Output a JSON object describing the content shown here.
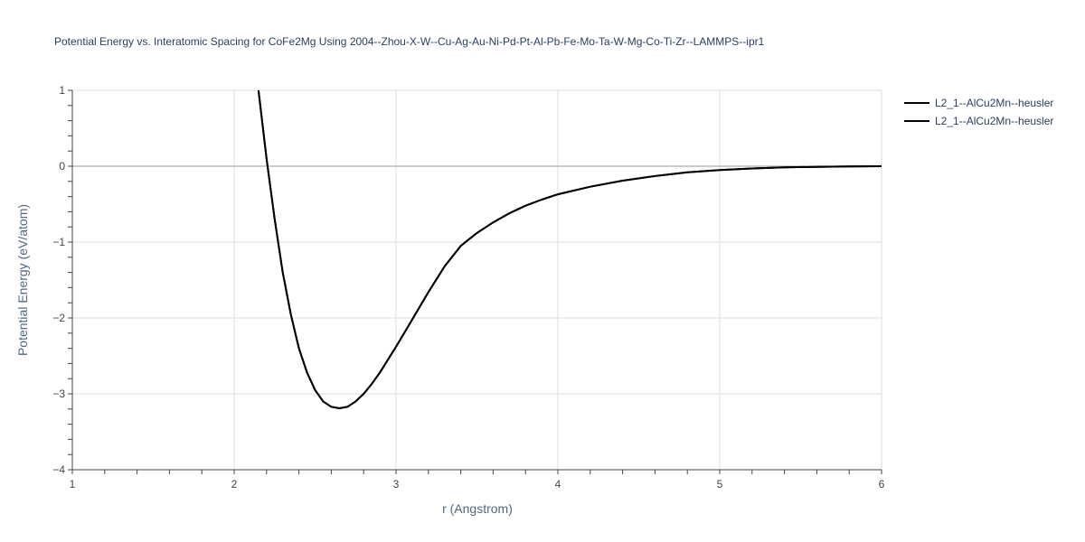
{
  "chart_data": {
    "type": "line",
    "title": "Potential Energy vs. Interatomic Spacing for CoFe2Mg Using 2004--Zhou-X-W--Cu-Ag-Au-Ni-Pd-Pt-Al-Pb-Fe-Mo-Ta-W-Mg-Co-Ti-Zr--LAMMPS--ipr1",
    "xlabel": "r (Angstrom)",
    "ylabel": "Potential Energy (eV/atom)",
    "xlim": [
      1,
      6
    ],
    "ylim": [
      -4,
      1
    ],
    "x_ticks": [
      1,
      2,
      3,
      4,
      5,
      6
    ],
    "y_ticks": [
      1,
      0,
      -1,
      -2,
      -3,
      -4
    ],
    "x_tick_labels": [
      "1",
      "2",
      "3",
      "4",
      "5",
      "6"
    ],
    "y_tick_labels": [
      "1",
      "0",
      "−1",
      "−2",
      "−3",
      "−4"
    ],
    "grid": true,
    "legend_position": "top-right",
    "line_color": "#000000",
    "series": [
      {
        "name": "L2_1--AlCu2Mn--heusler",
        "x": [
          2.15,
          2.2,
          2.25,
          2.3,
          2.35,
          2.4,
          2.45,
          2.5,
          2.55,
          2.6,
          2.65,
          2.7,
          2.75,
          2.8,
          2.85,
          2.9,
          3.0,
          3.1,
          3.2,
          3.3,
          3.4,
          3.5,
          3.6,
          3.7,
          3.8,
          3.9,
          4.0,
          4.2,
          4.4,
          4.6,
          4.8,
          5.0,
          5.2,
          5.4,
          5.6,
          5.8,
          6.0
        ],
        "y": [
          1.0,
          0.1,
          -0.7,
          -1.4,
          -1.95,
          -2.4,
          -2.72,
          -2.95,
          -3.1,
          -3.17,
          -3.19,
          -3.17,
          -3.1,
          -3.0,
          -2.87,
          -2.72,
          -2.38,
          -2.02,
          -1.66,
          -1.32,
          -1.05,
          -0.88,
          -0.74,
          -0.62,
          -0.52,
          -0.44,
          -0.37,
          -0.27,
          -0.19,
          -0.13,
          -0.08,
          -0.05,
          -0.03,
          -0.015,
          -0.008,
          -0.003,
          0.0
        ]
      },
      {
        "name": "L2_1--AlCu2Mn--heusler",
        "x": [
          2.15,
          2.2,
          2.25,
          2.3,
          2.35,
          2.4,
          2.45,
          2.5,
          2.55,
          2.6,
          2.65,
          2.7,
          2.75,
          2.8,
          2.85,
          2.9,
          3.0,
          3.1,
          3.2,
          3.3,
          3.4,
          3.5,
          3.6,
          3.7,
          3.8,
          3.9,
          4.0,
          4.2,
          4.4,
          4.6,
          4.8,
          5.0,
          5.2,
          5.4,
          5.6,
          5.8,
          6.0
        ],
        "y": [
          1.0,
          0.1,
          -0.7,
          -1.4,
          -1.95,
          -2.4,
          -2.72,
          -2.95,
          -3.1,
          -3.17,
          -3.19,
          -3.17,
          -3.1,
          -3.0,
          -2.87,
          -2.72,
          -2.38,
          -2.02,
          -1.66,
          -1.32,
          -1.05,
          -0.88,
          -0.74,
          -0.62,
          -0.52,
          -0.44,
          -0.37,
          -0.27,
          -0.19,
          -0.13,
          -0.08,
          -0.05,
          -0.03,
          -0.015,
          -0.008,
          -0.003,
          0.0
        ]
      }
    ]
  }
}
